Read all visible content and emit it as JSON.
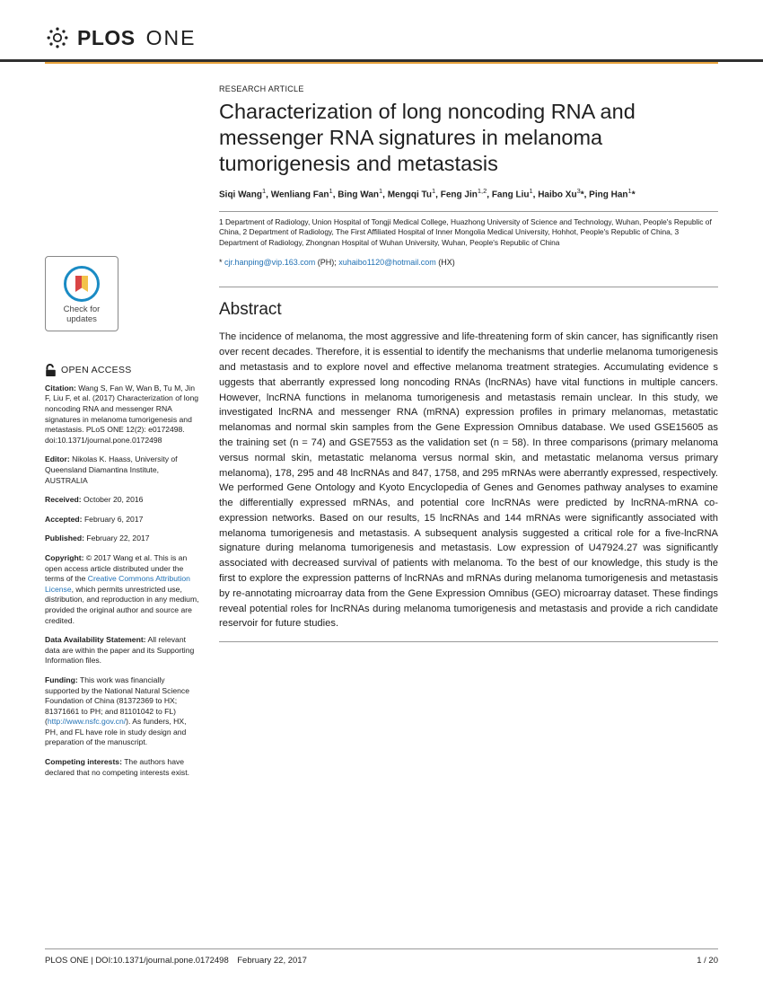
{
  "journal": {
    "brand": "PLOS",
    "name": "ONE"
  },
  "articleType": "RESEARCH ARTICLE",
  "title": "Characterization of long noncoding RNA and messenger RNA signatures in melanoma tumorigenesis and metastasis",
  "authorsHtml": "Siqi Wang<sup>1</sup>, Wenliang Fan<sup>1</sup>, Bing Wan<sup>1</sup>, Mengqi Tu<sup>1</sup>, Feng Jin<sup>1,2</sup>, Fang Liu<sup>1</sup>, Haibo Xu<sup>3</sup>*, Ping Han<sup>1</sup>*",
  "affiliations": "1 Department of Radiology, Union Hospital of Tongji Medical College, Huazhong University of Science and Technology, Wuhan, People's Republic of China, 2 Department of Radiology, The First Affiliated Hospital of Inner Mongolia Medical University, Hohhot, People's Republic of China, 3 Department of Radiology, Zhongnan Hospital of Wuhan University, Wuhan, People's Republic of China",
  "emailPrefix": "* ",
  "email1": "cjr.hanping@vip.163.com",
  "emailMid": " (PH); ",
  "email2": "xuhaibo1120@hotmail.com",
  "emailSuffix": " (HX)",
  "abstractHeading": "Abstract",
  "abstract": "The incidence of melanoma, the most aggressive and life-threatening form of skin cancer, has significantly risen over recent decades. Therefore, it is essential to identify the mechanisms that underlie melanoma tumorigenesis and metastasis and to explore novel and effective melanoma treatment strategies. Accumulating evidence s uggests that aberrantly expressed long noncoding RNAs (lncRNAs) have vital functions in multiple cancers. However, lncRNA functions in melanoma tumorigenesis and metastasis remain unclear. In this study, we investigated lncRNA and messenger RNA (mRNA) expression profiles in primary melanomas, metastatic melanomas and normal skin samples from the Gene Expression Omnibus database. We used GSE15605 as the training set (n = 74) and GSE7553 as the validation set (n = 58). In three comparisons (primary melanoma versus normal skin, metastatic melanoma versus normal skin, and metastatic melanoma versus primary melanoma), 178, 295 and 48 lncRNAs and 847, 1758, and 295 mRNAs were aberrantly expressed, respectively. We performed Gene Ontology and Kyoto Encyclopedia of Genes and Genomes pathway analyses to examine the differentially expressed mRNAs, and potential core lncRNAs were predicted by lncRNA-mRNA co-expression networks. Based on our results, 15 lncRNAs and 144 mRNAs were significantly associated with melanoma tumorigenesis and metastasis. A subsequent analysis suggested a critical role for a five-lncRNA signature during melanoma tumorigenesis and metastasis. Low expression of U47924.27 was significantly associated with decreased survival of patients with melanoma. To the best of our knowledge, this study is the first to explore the expression patterns of lncRNAs and mRNAs during melanoma tumorigenesis and metastasis by re-annotating microarray data from the Gene Expression Omnibus (GEO) microarray dataset. These findings reveal potential roles for lncRNAs during melanoma tumorigenesis and metastasis and provide a rich candidate reservoir for future studies.",
  "sidebar": {
    "updates": "Check for updates",
    "openAccess": "OPEN ACCESS",
    "citation": "Wang S, Fan W, Wan B, Tu M, Jin F, Liu F, et al. (2017) Characterization of long noncoding RNA and messenger RNA signatures in melanoma tumorigenesis and metastasis. PLoS ONE 12(2): e0172498. doi:10.1371/journal.pone.0172498",
    "editor": "Nikolas K. Haass, University of Queensland Diamantina Institute, AUSTRALIA",
    "received": "October 20, 2016",
    "accepted": "February 6, 2017",
    "published": "February 22, 2017",
    "copyright1": "© 2017 Wang et al. This is an open access article distributed under the terms of the ",
    "ccLink": "Creative Commons Attribution License",
    "copyright2": ", which permits unrestricted use, distribution, and reproduction in any medium, provided the original author and source are credited.",
    "dataAvail": "All relevant data are within the paper and its Supporting Information files.",
    "funding1": "This work was financially supported by the National Natural Science Foundation of China (81372369 to HX; 81371661 to PH; and 81101042 to FL) (",
    "fundingLink": "http://www.nsfc.gov.cn/",
    "funding2": "). As funders, HX, PH, and FL have role in study design and preparation of the manuscript.",
    "competing": "The authors have declared that no competing interests exist."
  },
  "footer": {
    "left": "PLOS ONE | DOI:10.1371/journal.pone.0172498 February 22, 2017",
    "right": "1 / 20"
  }
}
